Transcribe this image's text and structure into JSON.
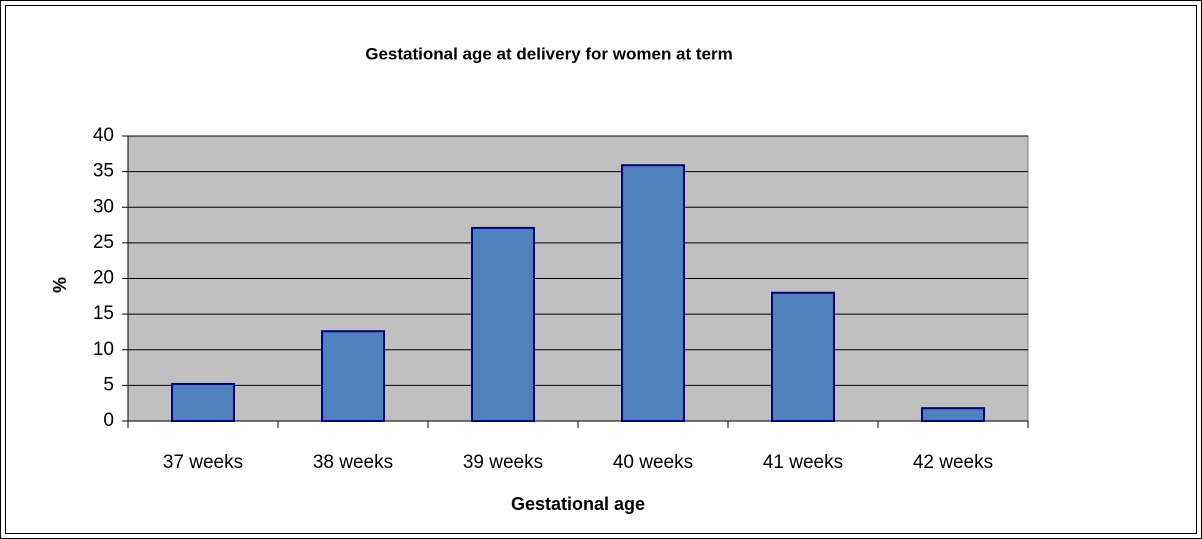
{
  "chart_data": {
    "type": "bar",
    "title": "Gestational age at delivery for women at term",
    "x_label": "Gestational age",
    "y_label": "%",
    "categories": [
      "37 weeks",
      "38 weeks",
      "39 weeks",
      "40 weeks",
      "41 weeks",
      "42 weeks"
    ],
    "values": [
      5.2,
      12.6,
      27.1,
      35.9,
      18.0,
      1.8
    ],
    "color": "#4f81bd",
    "edge_color": "#000080",
    "plot_background": "#c0c0c0",
    "ylim": [
      0,
      40
    ],
    "yticks": [
      0,
      5,
      10,
      15,
      20,
      25,
      30,
      35,
      40
    ],
    "grid": true
  }
}
